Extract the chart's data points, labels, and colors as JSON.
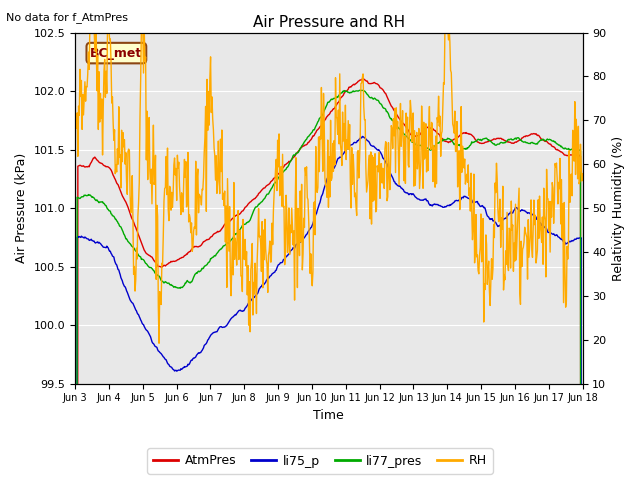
{
  "title": "Air Pressure and RH",
  "top_left_text": "No data for f_AtmPres",
  "annotation_box": "BC_met",
  "xlabel": "Time",
  "ylabel_left": "Air Pressure (kPa)",
  "ylabel_right": "Relativity Humidity (%)",
  "ylim_left": [
    99.5,
    102.5
  ],
  "ylim_right": [
    10,
    90
  ],
  "xtick_labels": [
    "Jun 3",
    "Jun 4",
    "Jun 5",
    "Jun 6",
    "Jun 7",
    "Jun 8",
    "Jun 9",
    "Jun 10",
    "Jun 11",
    "Jun 12",
    "Jun 13",
    "Jun 14",
    "Jun 15",
    "Jun 16",
    "Jun 17",
    "Jun 18"
  ],
  "bg_color": "#e8e8e8",
  "colors": {
    "AtmPres": "#dd0000",
    "li75_p": "#0000cc",
    "li77_pres": "#00aa00",
    "RH": "#ffaa00"
  },
  "legend_entries": [
    "AtmPres",
    "li75_p",
    "li77_pres",
    "RH"
  ],
  "figsize": [
    6.4,
    4.8
  ],
  "dpi": 100
}
